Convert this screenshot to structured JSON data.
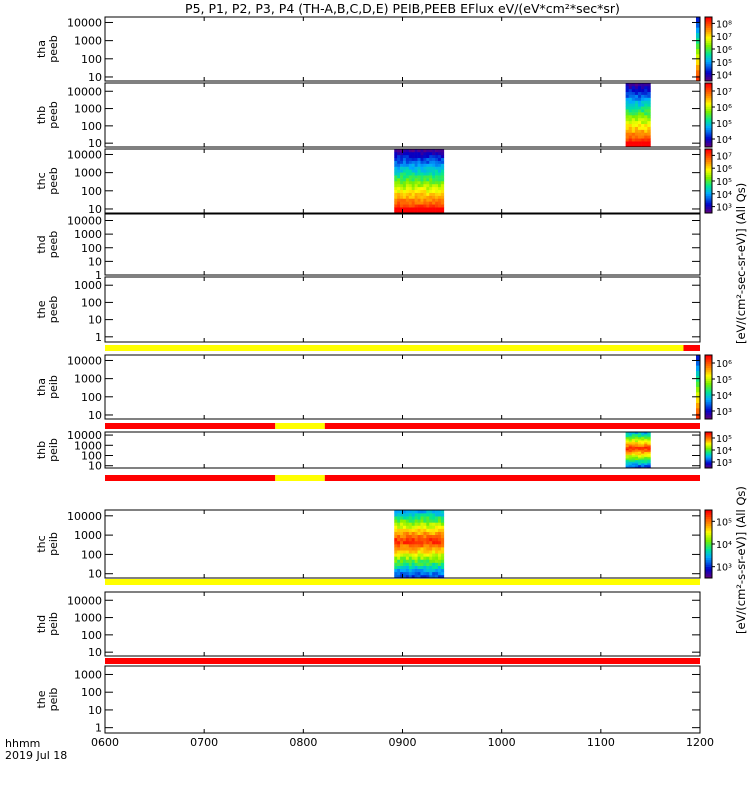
{
  "chart_data": {
    "type": "heatmap",
    "title": "P5, P1, P2, P3, P4 (TH-A,B,C,D,E) PEIB,PEEB EFlux eV/(eV*cm²*sec*sr)",
    "x_ticks": [
      "0600",
      "0700",
      "0800",
      "0900",
      "1000",
      "1100",
      "1200"
    ],
    "x_range": [
      "0600",
      "1200"
    ],
    "x_label_1": "hhmm",
    "x_label_2": "2019 Jul 18",
    "electron_unit_label": "[eV/(cm²-sec-sr-eV)] (All Qs)",
    "ion_unit_label": "[eV/(cm²-s-sr-eV)] (All Qs)",
    "color_scale": "log, rainbow",
    "panels": [
      {
        "probe": "tha",
        "instrument": "peeb",
        "y_ticks": [
          "10",
          "100",
          "1000",
          "10000"
        ],
        "y_range": [
          6,
          20000
        ],
        "colorbar_ticks": [
          "10⁴",
          "10⁵",
          "10⁶",
          "10⁷",
          "10⁸"
        ],
        "flag_bar": [],
        "data": "edge only near 1200"
      },
      {
        "probe": "thb",
        "instrument": "peeb",
        "y_ticks": [
          "10",
          "100",
          "1000",
          "10000"
        ],
        "y_range": [
          6,
          30000
        ],
        "colorbar_ticks": [
          "10⁴",
          "10⁵",
          "10⁶",
          "10⁷"
        ],
        "flag_bar": [],
        "data_span": [
          "1115",
          "1130"
        ]
      },
      {
        "probe": "thc",
        "instrument": "peeb",
        "y_ticks": [
          "10",
          "100",
          "1000",
          "10000"
        ],
        "y_range": [
          6,
          20000
        ],
        "colorbar_ticks": [
          "10³",
          "10⁴",
          "10⁵",
          "10⁶",
          "10⁷"
        ],
        "flag_bar": [],
        "data_span": [
          "0855",
          "0925"
        ]
      },
      {
        "probe": "thd",
        "instrument": "peeb",
        "y_ticks": [
          "1",
          "10",
          "100",
          "1000",
          "10000"
        ],
        "y_range": [
          1,
          30000
        ],
        "colorbar_ticks": [],
        "flag_bar": [],
        "data": "none"
      },
      {
        "probe": "the",
        "instrument": "peeb",
        "y_ticks": [
          "1",
          "10",
          "100",
          "1000"
        ],
        "y_range": [
          0.5,
          3000
        ],
        "colorbar_ticks": [],
        "flag_bar": [
          {
            "from": "0600",
            "to": "1150",
            "color": "#ffff00"
          },
          {
            "from": "1150",
            "to": "1200",
            "color": "#ff0000"
          }
        ],
        "data": "none"
      },
      {
        "probe": "tha",
        "instrument": "peib",
        "y_ticks": [
          "10",
          "100",
          "1000",
          "10000"
        ],
        "y_range": [
          6,
          20000
        ],
        "colorbar_ticks": [
          "10³",
          "10⁴",
          "10⁵",
          "10⁶"
        ],
        "flag_bar": [
          {
            "from": "0600",
            "to": "0743",
            "color": "#ff0000"
          },
          {
            "from": "0743",
            "to": "0813",
            "color": "#ffff00"
          },
          {
            "from": "0813",
            "to": "1200",
            "color": "#ff0000"
          }
        ],
        "data": "edge only near 1200"
      },
      {
        "probe": "thb",
        "instrument": "peib",
        "y_ticks": [
          "10",
          "100",
          "1000",
          "10000"
        ],
        "y_range": [
          6,
          20000
        ],
        "colorbar_ticks": [
          "10³",
          "10⁴",
          "10⁵"
        ],
        "flag_bar": [
          {
            "from": "0600",
            "to": "0743",
            "color": "#ff0000"
          },
          {
            "from": "0743",
            "to": "0813",
            "color": "#ffff00"
          },
          {
            "from": "0813",
            "to": "1200",
            "color": "#ff0000"
          }
        ],
        "data_span": [
          "1115",
          "1130"
        ]
      },
      {
        "probe": "thc",
        "instrument": "peib",
        "y_ticks": [
          "10",
          "100",
          "1000",
          "10000"
        ],
        "y_range": [
          6,
          20000
        ],
        "colorbar_ticks": [
          "10³",
          "10⁴",
          "10⁵"
        ],
        "flag_bar": [
          {
            "from": "0600",
            "to": "1200",
            "color": "#ffff00"
          }
        ],
        "data_span": [
          "0855",
          "0925"
        ]
      },
      {
        "probe": "thd",
        "instrument": "peib",
        "y_ticks": [
          "10",
          "100",
          "1000",
          "10000"
        ],
        "y_range": [
          6,
          30000
        ],
        "colorbar_ticks": [],
        "flag_bar": [
          {
            "from": "0600",
            "to": "1200",
            "color": "#ff0000"
          }
        ],
        "data": "none"
      },
      {
        "probe": "the",
        "instrument": "peib",
        "y_ticks": [
          "1",
          "10",
          "100",
          "1000"
        ],
        "y_range": [
          0.5,
          3000
        ],
        "colorbar_ticks": [],
        "flag_bar": [],
        "data": "none"
      }
    ]
  }
}
